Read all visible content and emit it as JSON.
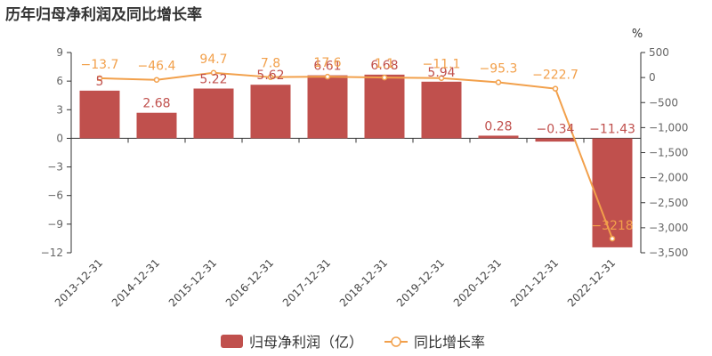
{
  "title": "历年归母净利润及同比增长率",
  "chart_data": {
    "type": "bar",
    "categories": [
      "2013-12-31",
      "2014-12-31",
      "2015-12-31",
      "2016-12-31",
      "2017-12-31",
      "2018-12-31",
      "2019-12-31",
      "2020-12-31",
      "2021-12-31",
      "2022-12-31"
    ],
    "series": [
      {
        "name": "归母净利润（亿）",
        "type": "bar",
        "axis": "left",
        "color": "#c0504d",
        "values": [
          5,
          2.68,
          5.22,
          5.62,
          6.61,
          6.68,
          5.94,
          0.28,
          -0.34,
          -11.43
        ],
        "labels": [
          "5",
          "2.68",
          "5.22",
          "5.62",
          "6.61",
          "6.68",
          "5.94",
          "0.28",
          "−0.34",
          "−11.43"
        ]
      },
      {
        "name": "同比增长率",
        "type": "line",
        "axis": "right",
        "color": "#f2a04b",
        "values": [
          -13.7,
          -46.4,
          94.7,
          7.8,
          17.6,
          1.1,
          -11.1,
          -95.3,
          -222.7,
          -3218
        ],
        "labels": [
          "−13.7",
          "−46.4",
          "94.7",
          "7.8",
          "17.6",
          "1.1",
          "−11.1",
          "−95.3",
          "−222.7",
          "−3218"
        ]
      }
    ],
    "y_left": {
      "ylim": [
        -12,
        9
      ],
      "ticks": [
        9,
        6,
        3,
        0,
        -3,
        -6,
        -9,
        -12
      ],
      "tick_labels": [
        "9",
        "6",
        "3",
        "0",
        "−3",
        "−6",
        "−9",
        "−12"
      ]
    },
    "y_right": {
      "ylabel": "%",
      "ylim": [
        -3500,
        500
      ],
      "ticks": [
        500,
        0,
        -500,
        -1000,
        -1500,
        -2000,
        -2500,
        -3000,
        -3500
      ],
      "tick_labels": [
        "500",
        "0",
        "−500",
        "−1,000",
        "−1,500",
        "−2,000",
        "−2,500",
        "−3,000",
        "−3,500"
      ]
    },
    "grid": false,
    "legend_position": "bottom"
  }
}
